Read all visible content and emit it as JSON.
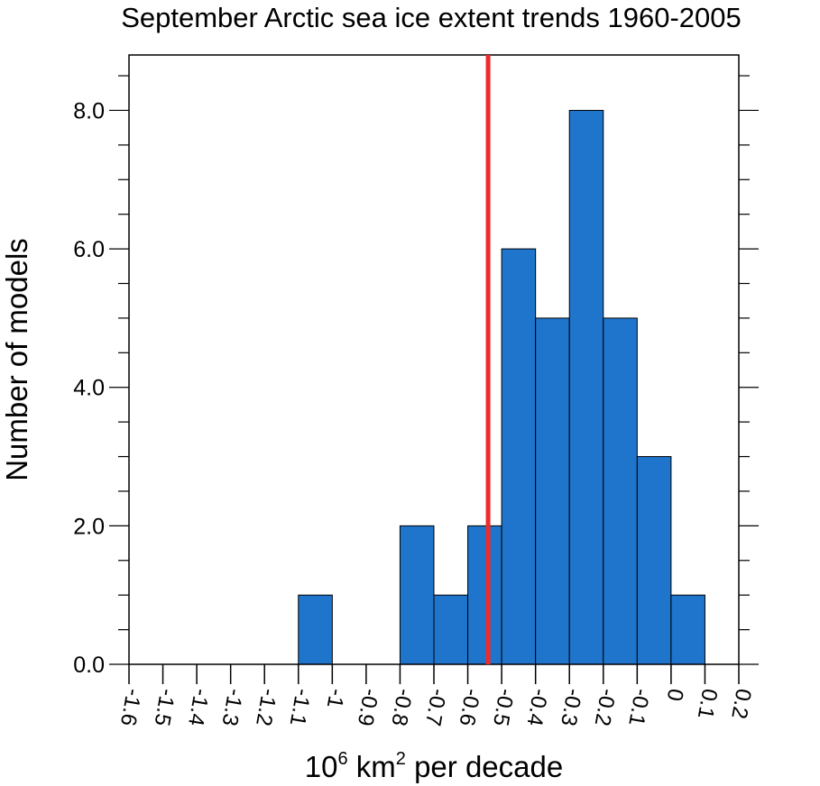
{
  "chart_data": {
    "type": "bar",
    "title": "September Arctic sea ice extent trends 1960-2005",
    "xlabel_base": "10",
    "xlabel_exp1": "6",
    "xlabel_mid": " km",
    "xlabel_exp2": "2",
    "xlabel_tail": " per decade",
    "ylabel": "Number of models",
    "xlim": [
      -1.6,
      0.2
    ],
    "ylim": [
      0,
      8.8
    ],
    "xticks": [
      "-1.6",
      "-1.5",
      "-1.4",
      "-1.3",
      "-1.2",
      "-1.1",
      "-1",
      "-0.9",
      "-0.8",
      "-0.7",
      "-0.6",
      "-0.5",
      "-0.4",
      "-0.3",
      "-0.2",
      "-0.1",
      "0",
      "0.1",
      "0.2"
    ],
    "yticks": [
      "0.0",
      "2.0",
      "4.0",
      "6.0",
      "8.0"
    ],
    "bins": [
      {
        "from": -1.1,
        "to": -1.0,
        "count": 1
      },
      {
        "from": -0.8,
        "to": -0.7,
        "count": 2
      },
      {
        "from": -0.7,
        "to": -0.6,
        "count": 1
      },
      {
        "from": -0.6,
        "to": -0.5,
        "count": 2
      },
      {
        "from": -0.5,
        "to": -0.4,
        "count": 6
      },
      {
        "from": -0.4,
        "to": -0.3,
        "count": 5
      },
      {
        "from": -0.3,
        "to": -0.2,
        "count": 8
      },
      {
        "from": -0.2,
        "to": -0.1,
        "count": 5
      },
      {
        "from": -0.1,
        "to": 0.0,
        "count": 3
      },
      {
        "from": 0.0,
        "to": 0.1,
        "count": 1
      }
    ],
    "observed_line": -0.54,
    "bar_color": "#1f75cc",
    "line_color": "#ee2a2a"
  }
}
